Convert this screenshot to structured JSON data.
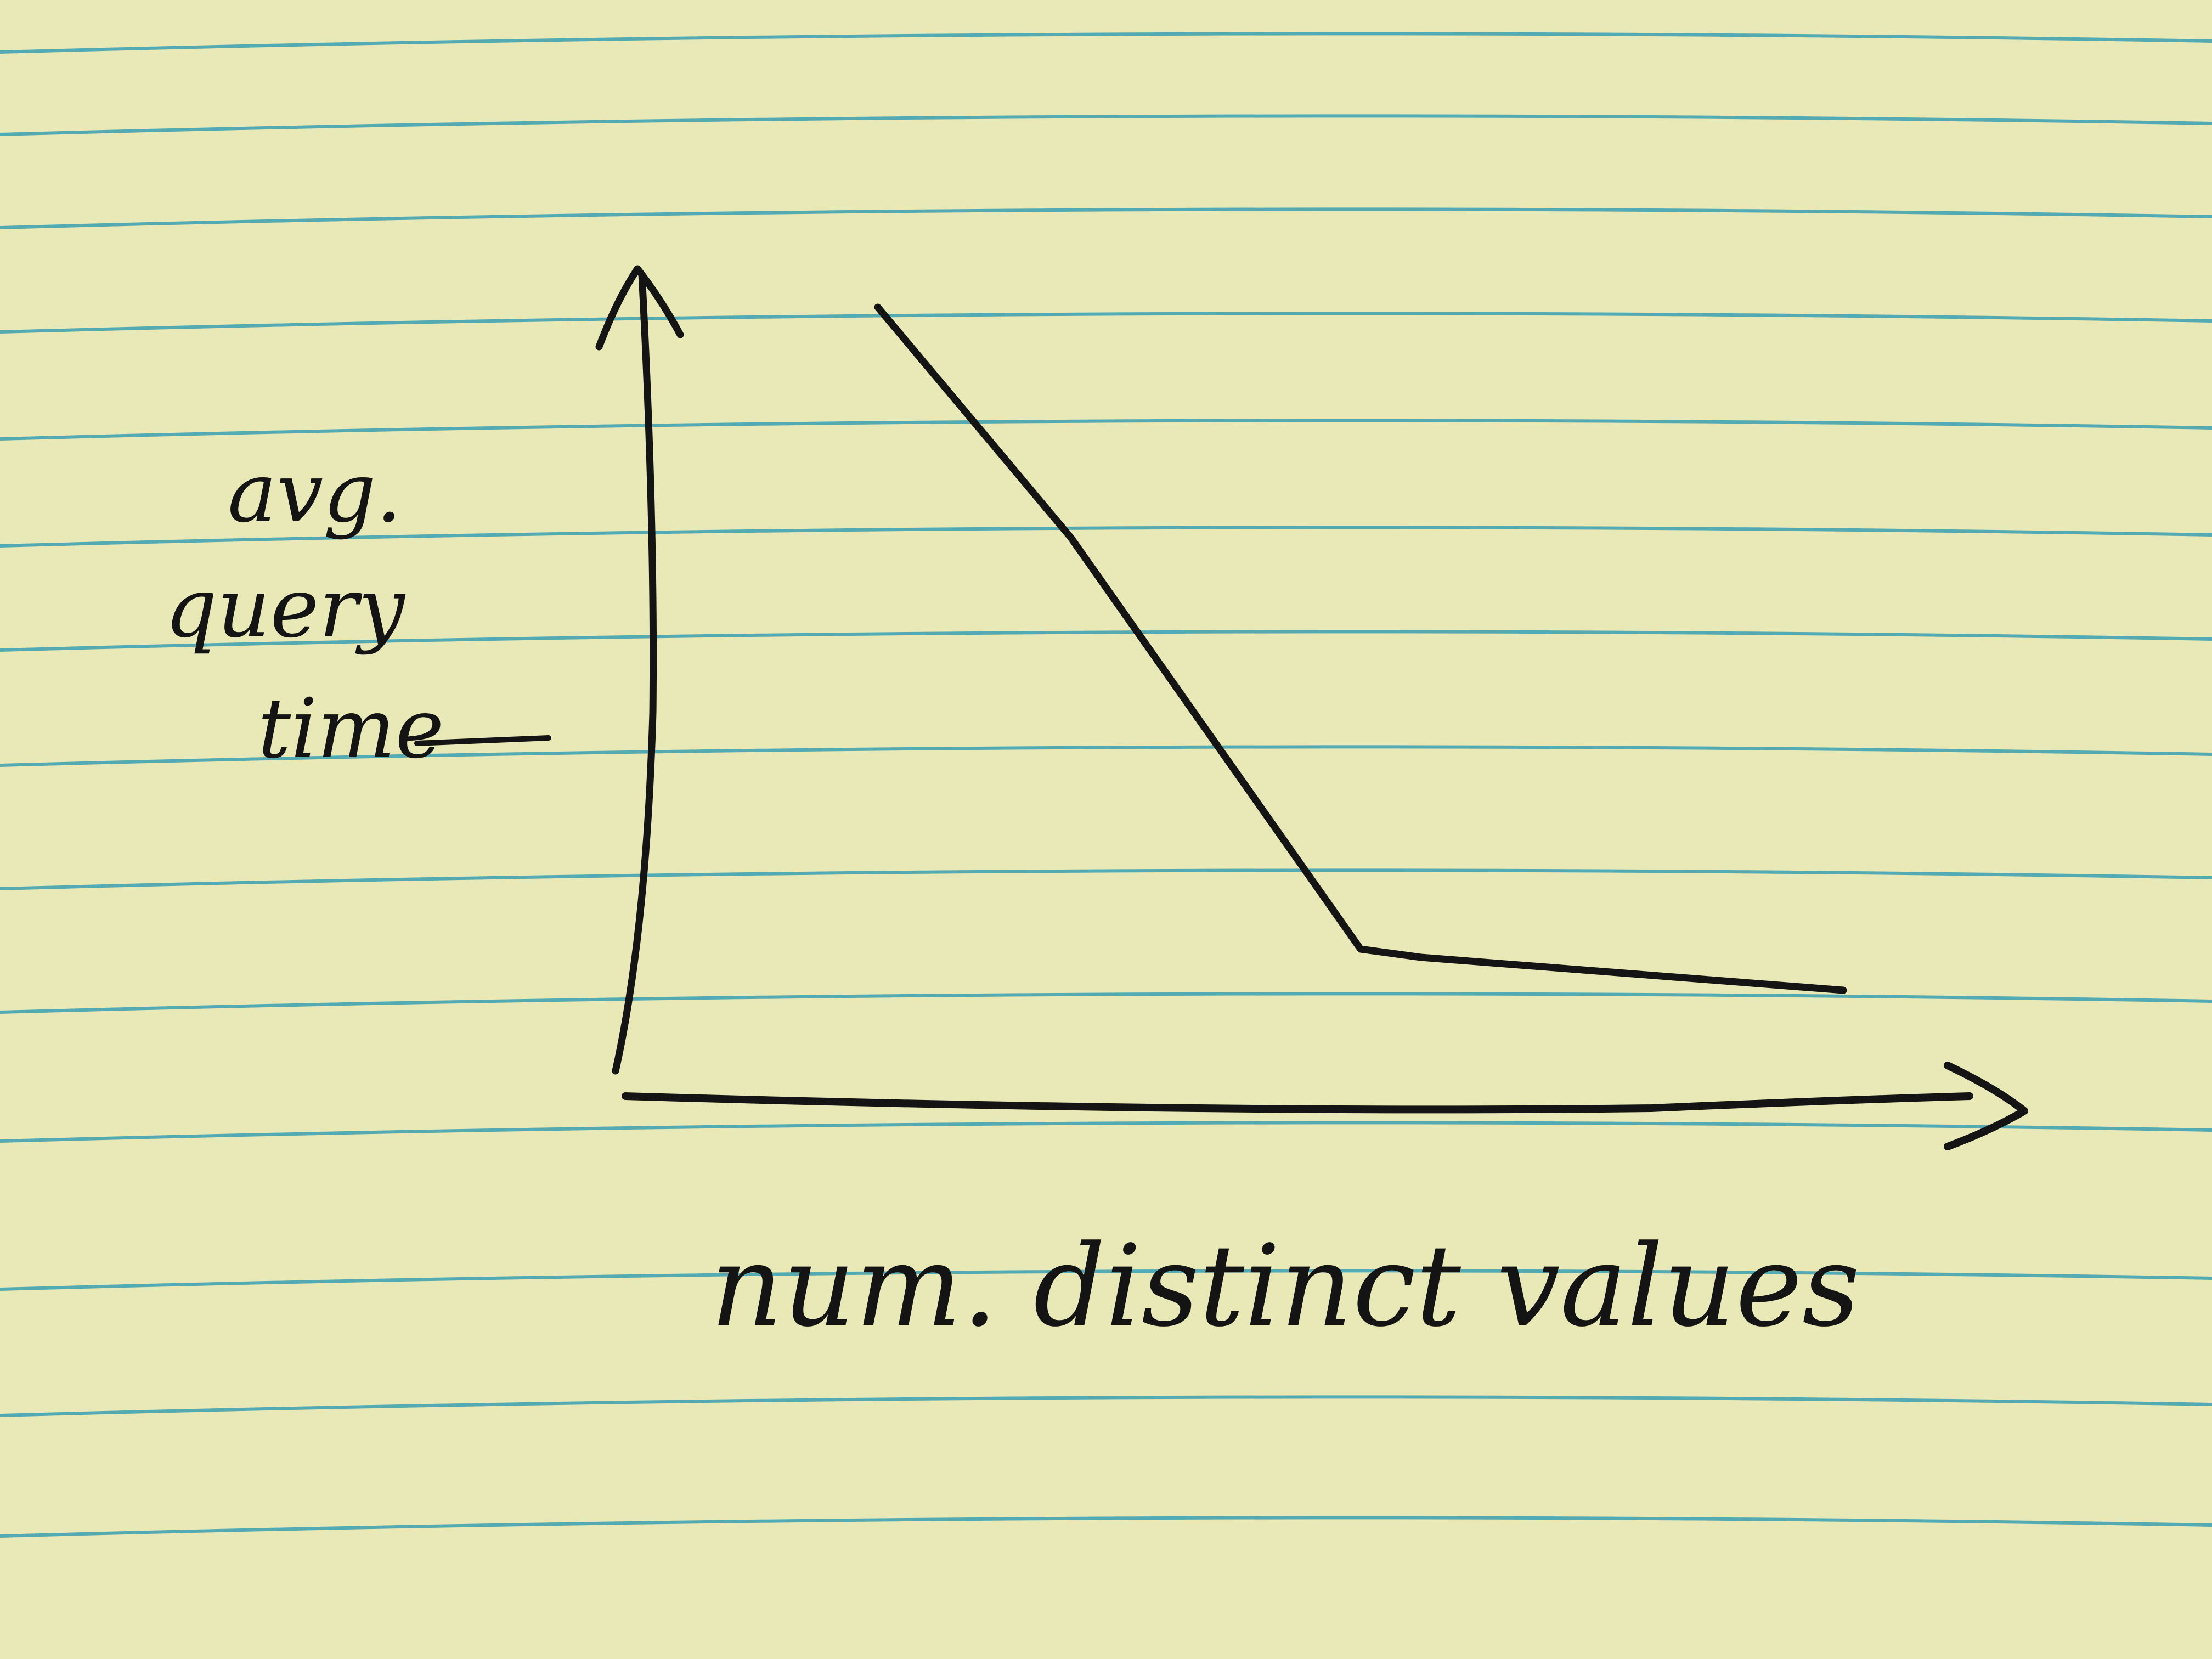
{
  "colors": {
    "paper": "#e9e9b8",
    "rule_line": "#3a9fb0",
    "ink": "#141414"
  },
  "chart_data": {
    "type": "line",
    "title": "",
    "xlabel": "num. distinct values",
    "ylabel": [
      "avg.",
      "query",
      "time"
    ],
    "axis_ticks": false,
    "grid": false,
    "legend": "none",
    "series": [
      {
        "x": [
          0.2,
          0.36,
          0.6,
          0.65,
          1.0
        ],
        "y": [
          0.96,
          0.68,
          0.18,
          0.17,
          0.13
        ]
      }
    ]
  }
}
